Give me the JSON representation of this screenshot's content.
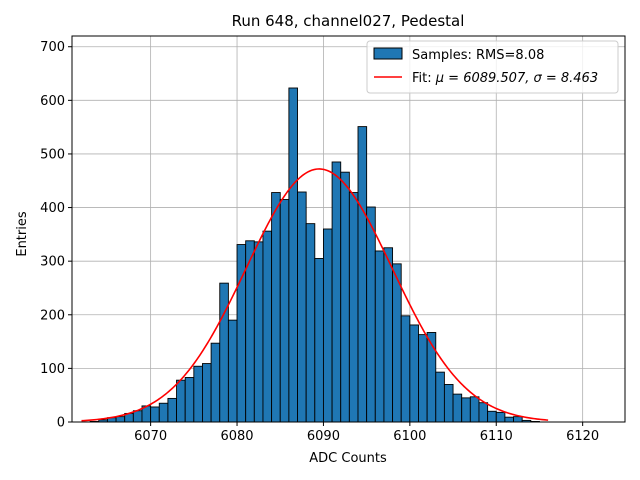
{
  "chart_data": {
    "type": "bar",
    "title": "Run 648, channel027, Pedestal",
    "xlabel": "ADC Counts",
    "ylabel": "Entries",
    "xlim": [
      6060.9,
      6124.9
    ],
    "ylim": [
      0,
      720
    ],
    "xticks": [
      6060,
      6070,
      6080,
      6090,
      6100,
      6110,
      6120
    ],
    "yticks": [
      0,
      100,
      200,
      300,
      400,
      500,
      600,
      700
    ],
    "grid": true,
    "legend_position": "top-right",
    "colors": {
      "bar": "#1f77b4",
      "bar_edge": "#000000",
      "fit": "#ff0000"
    },
    "histogram": {
      "name": "Samples: RMS=8.08",
      "bin_width": 1,
      "x_start": 6062,
      "counts": [
        0,
        1,
        4,
        8,
        10,
        16,
        21,
        30,
        28,
        35,
        44,
        78,
        83,
        104,
        109,
        147,
        259,
        190,
        331,
        338,
        336,
        356,
        428,
        415,
        623,
        429,
        370,
        305,
        360,
        485,
        466,
        428,
        551,
        401,
        319,
        325,
        295,
        198,
        181,
        163,
        167,
        93,
        70,
        52,
        45,
        47,
        36,
        20,
        18,
        9,
        10,
        3,
        1,
        0
      ]
    },
    "fit": {
      "name_prefix": "Fit: ",
      "name_math": "μ = 6089.507, σ = 8.463",
      "mu": 6089.507,
      "sigma": 8.463,
      "amplitude": 472,
      "x_range": [
        6062,
        6116
      ]
    }
  }
}
